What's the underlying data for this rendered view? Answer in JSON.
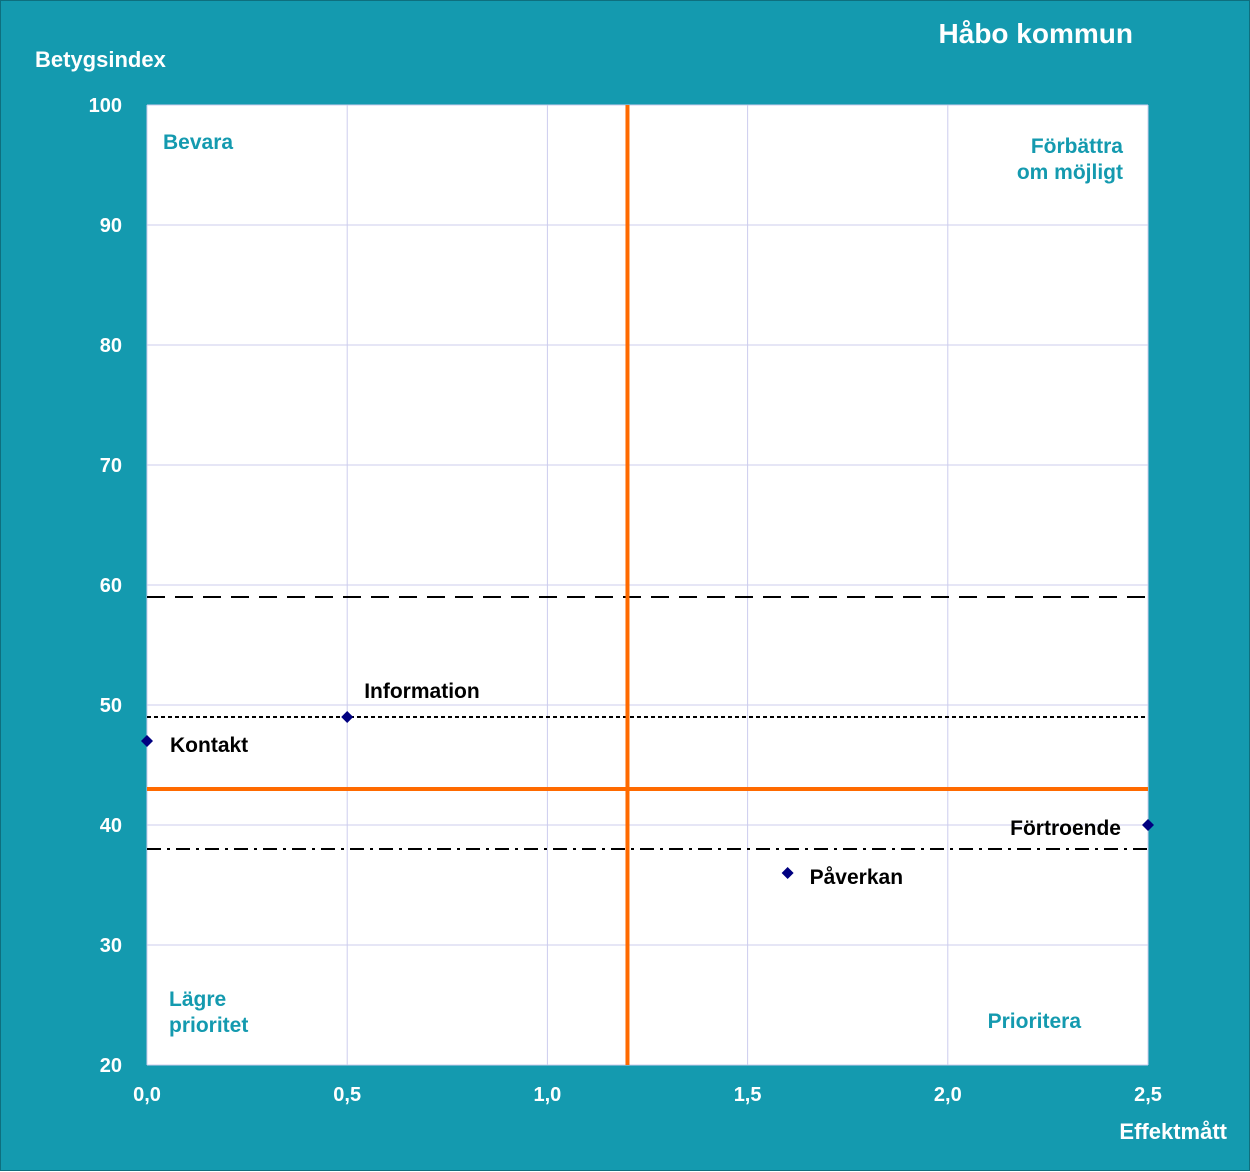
{
  "chart_data": {
    "type": "scatter",
    "title": "Håbo kommun",
    "xlabel": "Effektmått",
    "ylabel": "Betygsindex",
    "xlim": [
      0,
      2.5
    ],
    "ylim": [
      20,
      100
    ],
    "x_ticks": [
      "0,0",
      "0,5",
      "1,0",
      "1,5",
      "2,0",
      "2,5"
    ],
    "x_tick_values": [
      0,
      0.5,
      1.0,
      1.5,
      2.0,
      2.5
    ],
    "y_ticks": [
      "20",
      "30",
      "40",
      "50",
      "60",
      "70",
      "80",
      "90",
      "100"
    ],
    "y_tick_values": [
      20,
      30,
      40,
      50,
      60,
      70,
      80,
      90,
      100
    ],
    "grid": true,
    "points": [
      {
        "label": "Information",
        "x": 0.5,
        "y": 49
      },
      {
        "label": "Kontakt",
        "x": 0.0,
        "y": 47
      },
      {
        "label": "Förtroende",
        "x": 2.5,
        "y": 40
      },
      {
        "label": "Påverkan",
        "x": 1.6,
        "y": 36
      }
    ],
    "point_color": "#000080",
    "quadrant_divider": {
      "x": 1.2,
      "y": 43,
      "color": "#ff6a00"
    },
    "reference_lines": [
      {
        "y": 59,
        "style": "dashed"
      },
      {
        "y": 49,
        "style": "dotted"
      },
      {
        "y": 38,
        "style": "dash-dot"
      }
    ],
    "quadrants": {
      "top_left": "Bevara",
      "top_right": [
        "Förbättra",
        "om möjligt"
      ],
      "bottom_left": [
        "Lägre",
        "prioritet"
      ],
      "bottom_right": "Prioritera"
    }
  },
  "colors": {
    "background": "#149aaf",
    "plot_area": "#ffffff",
    "gridline": "#ccccee",
    "quadrant_text": "#149aaf"
  }
}
